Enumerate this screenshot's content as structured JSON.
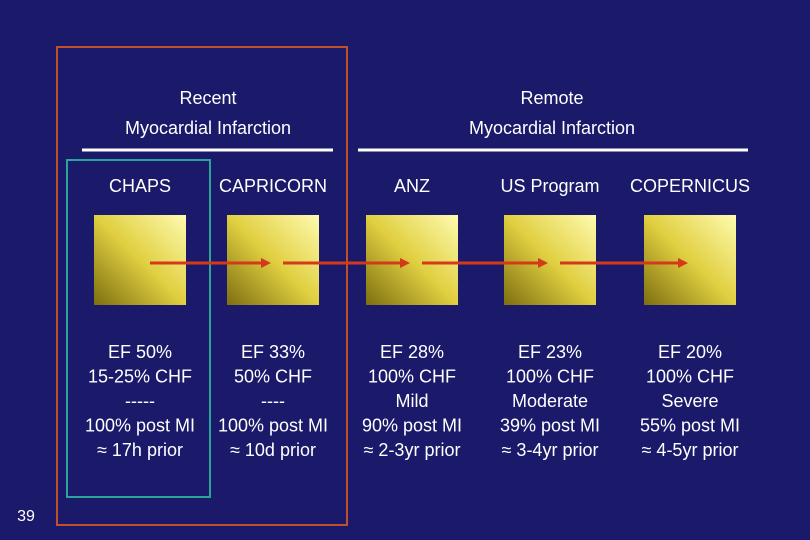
{
  "groups": [
    {
      "title": [
        "Recent",
        "Myocardial Infarction"
      ]
    },
    {
      "title": [
        "Remote",
        "Myocardial Infarction"
      ]
    }
  ],
  "columns": [
    {
      "name": "CHAPS",
      "lines": [
        "EF 50%",
        "15-25% CHF",
        "-----",
        "100% post MI",
        "≈ 17h prior"
      ]
    },
    {
      "name": "CAPRICORN",
      "lines": [
        "EF 33%",
        "50% CHF",
        "----",
        "100% post MI",
        "≈ 10d prior"
      ]
    },
    {
      "name": "ANZ",
      "lines": [
        "EF 28%",
        "100% CHF",
        "Mild",
        "90% post MI",
        "≈ 2-3yr prior"
      ]
    },
    {
      "name": "US Program",
      "lines": [
        "EF 23%",
        "100% CHF",
        "Moderate",
        "39% post MI",
        "≈ 3-4yr prior"
      ]
    },
    {
      "name": "COPERNICUS",
      "lines": [
        "EF 20%",
        "100% CHF",
        "Severe",
        "55% post MI",
        "≈ 4-5yr prior"
      ]
    }
  ],
  "page_number": "39"
}
